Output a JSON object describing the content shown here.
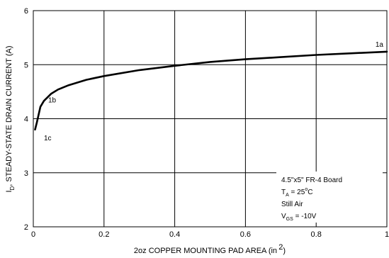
{
  "chart_data": {
    "type": "line",
    "xlabel": "2oz COPPER MOUNTING PAD AREA (in",
    "xlabel_sup": "2",
    "xlabel_tail": ")",
    "ylabel_main": "I",
    "ylabel_sub": "D",
    "ylabel_rest": ", STEADY-STATE DRAIN CURRENT (A)",
    "xlim": [
      0,
      1
    ],
    "ylim": [
      2,
      6
    ],
    "x_ticks": [
      {
        "value": 0,
        "label": "0"
      },
      {
        "value": 0.2,
        "label": "0.2"
      },
      {
        "value": 0.4,
        "label": "0.4"
      },
      {
        "value": 0.6,
        "label": "0.6"
      },
      {
        "value": 0.8,
        "label": "0.8"
      },
      {
        "value": 1,
        "label": "1"
      }
    ],
    "y_ticks": [
      {
        "value": 2,
        "label": "2"
      },
      {
        "value": 3,
        "label": "3"
      },
      {
        "value": 4,
        "label": "4"
      },
      {
        "value": 5,
        "label": "5"
      },
      {
        "value": 6,
        "label": "6"
      }
    ],
    "grid": true,
    "series": [
      {
        "x": [
          0.005,
          0.01,
          0.02,
          0.03,
          0.05,
          0.07,
          0.1,
          0.15,
          0.2,
          0.3,
          0.4,
          0.5,
          0.6,
          0.7,
          0.8,
          0.9,
          1.0
        ],
        "y": [
          3.8,
          3.93,
          4.22,
          4.33,
          4.46,
          4.54,
          4.62,
          4.72,
          4.79,
          4.9,
          4.98,
          5.05,
          5.1,
          5.14,
          5.18,
          5.21,
          5.24
        ]
      }
    ],
    "annotations": [
      {
        "text": "1a",
        "x": 0.99,
        "y": 5.24
      },
      {
        "text": "1b",
        "x": 0.03,
        "y": 4.22
      },
      {
        "text": "1c",
        "x": 0.02,
        "y": 3.8
      }
    ],
    "conditions": {
      "board": "4.5\"x5\" FR-4 Board",
      "ta_main": "T",
      "ta_sub": "A",
      "ta_rest": " = 25",
      "ta_deg": "o",
      "ta_unit": "C",
      "air": "Still Air",
      "vgs_main": "V",
      "vgs_sub": "GS",
      "vgs_rest": " = -10V"
    }
  }
}
